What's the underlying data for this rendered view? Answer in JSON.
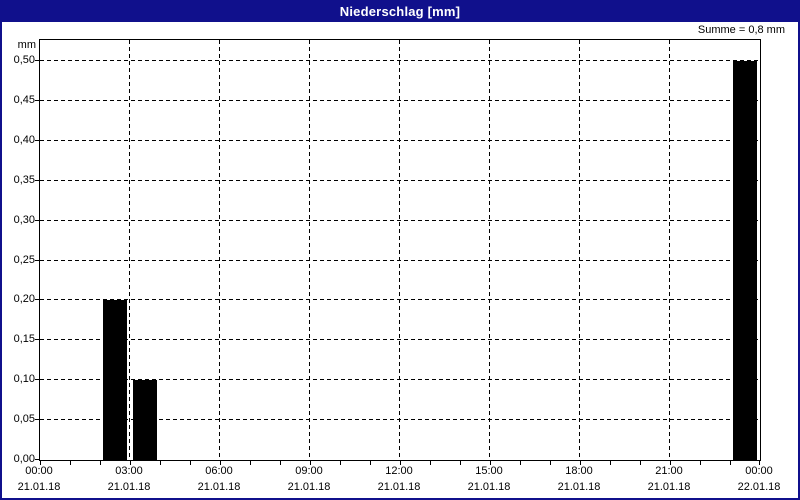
{
  "header": {
    "title": "Niederschlag [mm]"
  },
  "colors": {
    "titlebar": "#10108C",
    "window_border": "#10108C",
    "grid": "#000000",
    "bar": "#000000",
    "background": "#FFFFFF",
    "title_text": "#FFFFFF"
  },
  "chart_data": {
    "type": "bar",
    "title": "Niederschlag [mm]",
    "ylabel": "mm",
    "annotation": "Summe = 0,8 mm",
    "sum_mm": "0,8",
    "grid": "dashed",
    "ylim": [
      0,
      0.526
    ],
    "hours_span": 24,
    "x_minor_tick_hours": 1,
    "x_major_ticks": [
      {
        "hour": 0,
        "time": "00:00",
        "date": "21.01.18"
      },
      {
        "hour": 3,
        "time": "03:00",
        "date": "21.01.18"
      },
      {
        "hour": 6,
        "time": "06:00",
        "date": "21.01.18"
      },
      {
        "hour": 9,
        "time": "09:00",
        "date": "21.01.18"
      },
      {
        "hour": 12,
        "time": "12:00",
        "date": "21.01.18"
      },
      {
        "hour": 15,
        "time": "15:00",
        "date": "21.01.18"
      },
      {
        "hour": 18,
        "time": "18:00",
        "date": "21.01.18"
      },
      {
        "hour": 21,
        "time": "21:00",
        "date": "21.01.18"
      },
      {
        "hour": 24,
        "time": "00:00",
        "date": "22.01.18"
      }
    ],
    "y_ticks": [
      {
        "value": 0.0,
        "label": "0,00"
      },
      {
        "value": 0.05,
        "label": "0,05"
      },
      {
        "value": 0.1,
        "label": "0,10"
      },
      {
        "value": 0.15,
        "label": "0,15"
      },
      {
        "value": 0.2,
        "label": "0,20"
      },
      {
        "value": 0.25,
        "label": "0,25"
      },
      {
        "value": 0.3,
        "label": "0,30"
      },
      {
        "value": 0.35,
        "label": "0,35"
      },
      {
        "value": 0.4,
        "label": "0,40"
      },
      {
        "value": 0.45,
        "label": "0,45"
      },
      {
        "value": 0.5,
        "label": "0,50"
      }
    ],
    "bars": [
      {
        "start_hour": 2,
        "end_hour": 3,
        "value": 0.2,
        "label": "0,20"
      },
      {
        "start_hour": 3,
        "end_hour": 4,
        "value": 0.1,
        "label": "0,10"
      },
      {
        "start_hour": 23,
        "end_hour": 24,
        "value": 0.5,
        "label": "0,50"
      }
    ]
  }
}
